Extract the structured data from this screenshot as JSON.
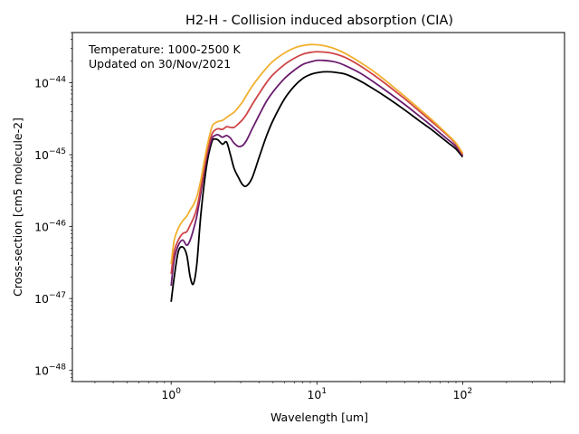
{
  "chart_data": {
    "type": "line",
    "title": "H2-H - Collision induced absorption (CIA)",
    "xlabel": "Wavelength [um]",
    "ylabel": "Cross-section [cm5 molecule-2]",
    "annotation_lines": [
      "Temperature: 1000-2500 K",
      "Updated on 30/Nov/2021"
    ],
    "x_scale": "log",
    "y_scale": "log",
    "xlim": [
      0.21,
      500
    ],
    "ylim": [
      7e-49,
      5e-44
    ],
    "x_ticks": [
      {
        "value": 1,
        "base": "10",
        "exp": "0"
      },
      {
        "value": 10,
        "base": "10",
        "exp": "1"
      },
      {
        "value": 100,
        "base": "10",
        "exp": "2"
      }
    ],
    "y_ticks": [
      {
        "value": 1e-48,
        "base": "10",
        "exp": "−48"
      },
      {
        "value": 1e-47,
        "base": "10",
        "exp": "−47"
      },
      {
        "value": 1e-46,
        "base": "10",
        "exp": "−46"
      },
      {
        "value": 1e-45,
        "base": "10",
        "exp": "−45"
      },
      {
        "value": 1e-44,
        "base": "10",
        "exp": "−44"
      }
    ],
    "grid": false,
    "legend": "none",
    "colors": [
      "#000000",
      "#6a1c6e",
      "#cf4446",
      "#f1b02f"
    ],
    "series": [
      {
        "color": "#000000",
        "x": [
          1.0,
          1.05,
          1.12,
          1.2,
          1.28,
          1.35,
          1.42,
          1.5,
          1.6,
          1.75,
          1.9,
          2.0,
          2.1,
          2.25,
          2.4,
          2.55,
          2.7,
          2.9,
          3.1,
          3.3,
          3.6,
          4.0,
          4.5,
          5.0,
          6.0,
          7.0,
          8.0,
          9.0,
          10.0,
          11.0,
          12.5,
          14.0,
          16.0,
          20.0,
          25.0,
          30.0,
          40.0,
          50.0,
          60.0,
          70.0,
          80.0,
          90.0,
          100.0
        ],
        "y": [
          9e-48,
          2e-47,
          4.5e-47,
          5.2e-47,
          4e-47,
          2e-47,
          1.6e-47,
          3e-47,
          1.5e-46,
          7e-46,
          1.5e-45,
          1.65e-45,
          1.6e-45,
          1.4e-45,
          1.5e-45,
          1e-45,
          6.5e-46,
          4.8e-46,
          3.8e-46,
          3.7e-46,
          4.8e-46,
          9e-46,
          1.8e-45,
          3e-45,
          6e-45,
          9e-45,
          1.15e-44,
          1.3e-44,
          1.38e-44,
          1.42e-44,
          1.42e-44,
          1.38e-44,
          1.3e-44,
          1.05e-44,
          8e-45,
          6.3e-45,
          4.2e-45,
          3e-45,
          2.3e-45,
          1.8e-45,
          1.45e-45,
          1.2e-45,
          9.3e-46
        ]
      },
      {
        "color": "#6a1c6e",
        "x": [
          1.0,
          1.05,
          1.12,
          1.2,
          1.28,
          1.35,
          1.42,
          1.5,
          1.6,
          1.75,
          1.9,
          2.0,
          2.1,
          2.25,
          2.4,
          2.55,
          2.7,
          2.9,
          3.1,
          3.3,
          3.6,
          4.0,
          4.5,
          5.0,
          6.0,
          7.0,
          8.0,
          9.0,
          10.0,
          11.0,
          12.5,
          14.0,
          16.0,
          20.0,
          25.0,
          30.0,
          40.0,
          50.0,
          60.0,
          70.0,
          80.0,
          90.0,
          100.0
        ],
        "y": [
          1.5e-47,
          3.5e-47,
          5.5e-47,
          6.5e-47,
          5.5e-47,
          6.5e-47,
          9e-47,
          1.4e-46,
          3e-46,
          9e-46,
          1.65e-45,
          1.85e-45,
          1.9e-45,
          1.75e-45,
          1.85e-45,
          1.7e-45,
          1.45e-45,
          1.3e-45,
          1.35e-45,
          1.6e-45,
          2.3e-45,
          3.5e-45,
          5.5e-45,
          7.5e-45,
          1.15e-44,
          1.5e-44,
          1.8e-44,
          1.95e-44,
          2.05e-44,
          2.05e-44,
          2e-44,
          1.9e-44,
          1.7e-44,
          1.35e-44,
          1e-44,
          7.7e-45,
          5e-45,
          3.5e-45,
          2.6e-45,
          2e-45,
          1.6e-45,
          1.3e-45,
          9.8e-46
        ]
      },
      {
        "color": "#cf4446",
        "x": [
          1.0,
          1.05,
          1.12,
          1.2,
          1.28,
          1.35,
          1.42,
          1.5,
          1.6,
          1.75,
          1.9,
          2.0,
          2.1,
          2.25,
          2.4,
          2.55,
          2.7,
          2.9,
          3.1,
          3.3,
          3.6,
          4.0,
          4.5,
          5.0,
          6.0,
          7.0,
          8.0,
          9.0,
          10.0,
          11.0,
          12.5,
          14.0,
          16.0,
          20.0,
          25.0,
          30.0,
          40.0,
          50.0,
          60.0,
          70.0,
          80.0,
          90.0,
          100.0
        ],
        "y": [
          2.2e-47,
          4.5e-47,
          6.5e-47,
          8e-47,
          8.5e-47,
          1.05e-46,
          1.3e-46,
          1.8e-46,
          3.5e-46,
          1e-45,
          1.9e-45,
          2.2e-45,
          2.3e-45,
          2.25e-45,
          2.45e-45,
          2.4e-45,
          2.4e-45,
          2.7e-45,
          3.1e-45,
          3.7e-45,
          5e-45,
          7e-45,
          1e-44,
          1.3e-44,
          1.8e-44,
          2.2e-44,
          2.5e-44,
          2.65e-44,
          2.7e-44,
          2.68e-44,
          2.6e-44,
          2.45e-44,
          2.2e-44,
          1.7e-44,
          1.25e-44,
          9.5e-45,
          6e-45,
          4.1e-45,
          3e-45,
          2.3e-45,
          1.8e-45,
          1.4e-45,
          1e-45
        ]
      },
      {
        "color": "#f1b02f",
        "x": [
          1.0,
          1.05,
          1.12,
          1.2,
          1.28,
          1.35,
          1.42,
          1.5,
          1.6,
          1.75,
          1.9,
          2.0,
          2.1,
          2.25,
          2.4,
          2.55,
          2.7,
          2.9,
          3.1,
          3.3,
          3.6,
          4.0,
          4.5,
          5.0,
          6.0,
          7.0,
          8.0,
          9.0,
          10.0,
          11.0,
          12.5,
          14.0,
          16.0,
          20.0,
          25.0,
          30.0,
          40.0,
          50.0,
          60.0,
          70.0,
          80.0,
          90.0,
          100.0
        ],
        "y": [
          3e-47,
          6.5e-47,
          9.5e-47,
          1.2e-46,
          1.4e-46,
          1.7e-46,
          2e-46,
          2.6e-46,
          4.5e-46,
          1.2e-45,
          2.4e-45,
          2.75e-45,
          2.9e-45,
          3e-45,
          3.3e-45,
          3.6e-45,
          3.9e-45,
          4.6e-45,
          5.5e-45,
          6.8e-45,
          9e-45,
          1.2e-44,
          1.6e-44,
          2e-44,
          2.6e-44,
          3.05e-44,
          3.3e-44,
          3.4e-44,
          3.38e-44,
          3.3e-44,
          3.1e-44,
          2.85e-44,
          2.5e-44,
          1.9e-44,
          1.4e-44,
          1.05e-44,
          6.5e-45,
          4.4e-45,
          3.2e-45,
          2.4e-45,
          1.85e-45,
          1.45e-45,
          1.05e-45
        ]
      }
    ]
  }
}
